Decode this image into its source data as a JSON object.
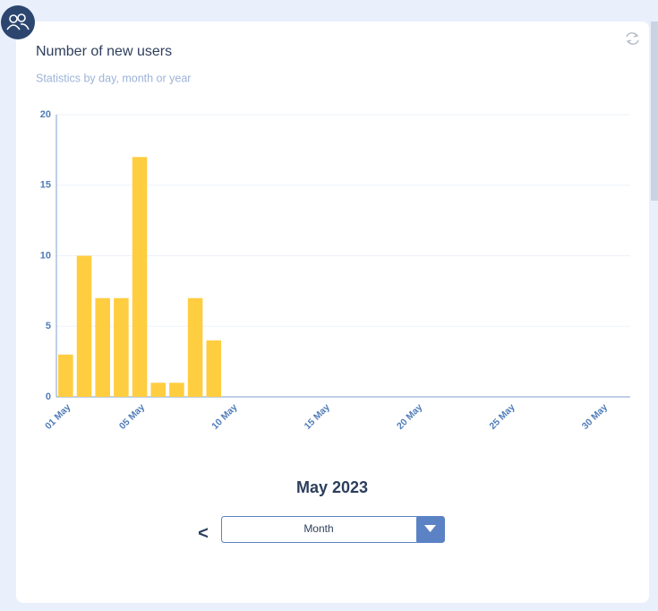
{
  "card": {
    "title": "Number of new users",
    "subtitle": "Statistics by day, month or year"
  },
  "chart_data": {
    "type": "bar",
    "categories": [
      "01 May",
      null,
      null,
      null,
      "05 May",
      null,
      null,
      null,
      null,
      "10 May",
      null,
      null,
      null,
      null,
      "15 May",
      null,
      null,
      null,
      null,
      "20 May",
      null,
      null,
      null,
      null,
      "25 May",
      null,
      null,
      null,
      null,
      "30 May",
      null
    ],
    "values": [
      3,
      10,
      7,
      7,
      17,
      1,
      1,
      7,
      4,
      0,
      0,
      0,
      0,
      0,
      0,
      0,
      0,
      0,
      0,
      0,
      0,
      0,
      0,
      0,
      0,
      0,
      0,
      0,
      0,
      0,
      0
    ],
    "color": "#ffcd40",
    "ylim": [
      0,
      20
    ],
    "yticks": [
      0,
      5,
      10,
      15,
      20
    ],
    "grid": true
  },
  "period": {
    "label": "May 2023",
    "prev": "<",
    "select": "Month"
  }
}
